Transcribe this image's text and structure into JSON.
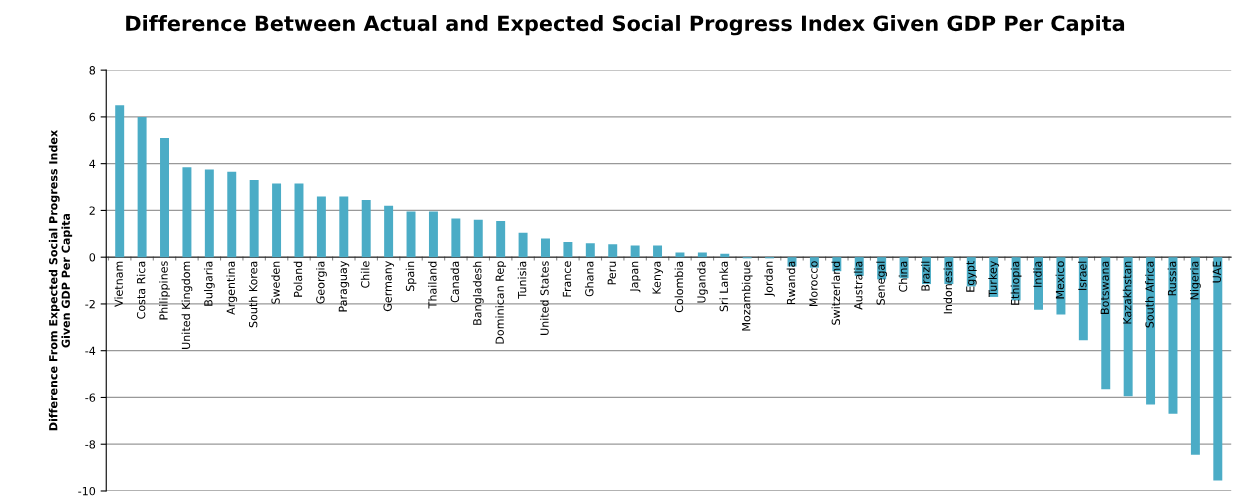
{
  "chart_data": {
    "type": "bar",
    "title": "Difference Between Actual and Expected Social Progress Index Given GDP Per Capita",
    "ylabel": "Difference From Expected Social Progress Index\nGiven GDP Per Capita",
    "categories": [
      "Vietnam",
      "Costa Rica",
      "Philippines",
      "United Kingdom",
      "Bulgaria",
      "Argentina",
      "South Korea",
      "Sweden",
      "Poland",
      "Georgia",
      "Paraguay",
      "Chile",
      "Germany",
      "Spain",
      "Thailand",
      "Canada",
      "Bangladesh",
      "Dominican Rep",
      "Tunisia",
      "United States",
      "France",
      "Ghana",
      "Peru",
      "Japan",
      "Kenya",
      "Colombia",
      "Uganda",
      "Sri Lanka",
      "Mozambique",
      "Jordan",
      "Rwanda",
      "Morocco",
      "Switzerland",
      "Australia",
      "Senegal",
      "China",
      "Brazil",
      "Indonesia",
      "Egypt",
      "Turkey",
      "Ethiopia",
      "India",
      "Mexico",
      "Israel",
      "Botswana",
      "Kazakhstan",
      "South Africa",
      "Russia",
      "Nigeria",
      "UAE"
    ],
    "values": [
      6.5,
      6.0,
      5.1,
      3.85,
      3.75,
      3.65,
      3.3,
      3.15,
      3.15,
      2.6,
      2.6,
      2.45,
      2.2,
      1.95,
      1.95,
      1.65,
      1.6,
      1.55,
      1.05,
      0.8,
      0.65,
      0.6,
      0.55,
      0.5,
      0.5,
      0.2,
      0.2,
      0.15,
      -0.05,
      -0.05,
      -0.4,
      -0.45,
      -0.6,
      -0.8,
      -0.95,
      -0.9,
      -1.15,
      -1.15,
      -1.25,
      -1.7,
      -1.85,
      -2.25,
      -2.45,
      -3.55,
      -5.65,
      -5.95,
      -6.3,
      -6.7,
      -8.45,
      -9.55
    ],
    "color": "#4bacc6",
    "ylim": [
      -10,
      8
    ],
    "yticks": [
      -10,
      -8,
      -6,
      -4,
      -2,
      0,
      2,
      4,
      6,
      8
    ],
    "grid": "y",
    "legend": false
  }
}
